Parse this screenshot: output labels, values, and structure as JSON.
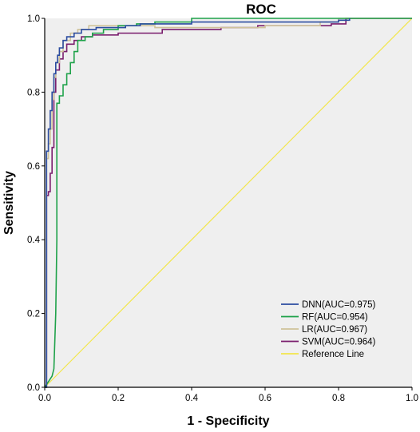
{
  "chart_data": {
    "type": "line",
    "title": "ROC",
    "xlabel": "1 - Specificity",
    "ylabel": "Sensitivity",
    "xlim": [
      0,
      1
    ],
    "ylim": [
      0,
      1
    ],
    "xticks": [
      "0.0",
      "0.2",
      "0.4",
      "0.6",
      "0.8",
      "1.0"
    ],
    "yticks": [
      "0.0",
      "0.2",
      "0.4",
      "0.6",
      "0.8",
      "1.0"
    ],
    "grid": false,
    "legend_position": "bottom-right",
    "colors": {
      "background": "#efefef",
      "axis": "#000000"
    },
    "series": [
      {
        "name": "DNN(AUC=0.975)",
        "color": "#2b4ca0",
        "x": [
          0.0,
          0.005,
          0.005,
          0.01,
          0.01,
          0.015,
          0.015,
          0.02,
          0.02,
          0.025,
          0.025,
          0.03,
          0.03,
          0.035,
          0.035,
          0.04,
          0.04,
          0.05,
          0.05,
          0.06,
          0.06,
          0.08,
          0.08,
          0.1,
          0.1,
          0.14,
          0.14,
          0.22,
          0.22,
          0.26,
          0.26,
          0.4,
          0.4,
          0.8,
          0.8,
          0.83,
          0.83
        ],
        "y": [
          0.0,
          0.0,
          0.64,
          0.64,
          0.7,
          0.7,
          0.75,
          0.75,
          0.8,
          0.8,
          0.85,
          0.85,
          0.88,
          0.88,
          0.9,
          0.9,
          0.92,
          0.92,
          0.94,
          0.94,
          0.95,
          0.95,
          0.96,
          0.96,
          0.97,
          0.97,
          0.975,
          0.975,
          0.98,
          0.98,
          0.985,
          0.985,
          0.99,
          0.99,
          0.995,
          0.995,
          1.0
        ]
      },
      {
        "name": "RF(AUC=0.954)",
        "color": "#1fa24a",
        "x": [
          0.0,
          0.02,
          0.025,
          0.03,
          0.033,
          0.033,
          0.04,
          0.04,
          0.05,
          0.05,
          0.06,
          0.06,
          0.07,
          0.07,
          0.08,
          0.08,
          0.09,
          0.09,
          0.11,
          0.11,
          0.13,
          0.13,
          0.16,
          0.16,
          0.2,
          0.2,
          0.25,
          0.25,
          0.3,
          0.3,
          0.4,
          0.4,
          1.0
        ],
        "y": [
          0.0,
          0.03,
          0.05,
          0.2,
          0.4,
          0.77,
          0.77,
          0.79,
          0.79,
          0.82,
          0.82,
          0.85,
          0.85,
          0.88,
          0.88,
          0.91,
          0.91,
          0.94,
          0.94,
          0.95,
          0.95,
          0.96,
          0.96,
          0.97,
          0.97,
          0.98,
          0.98,
          0.985,
          0.985,
          0.99,
          0.99,
          1.0,
          1.0
        ]
      },
      {
        "name": "LR(AUC=0.967)",
        "color": "#cfc39a",
        "x": [
          0.0,
          0.005,
          0.005,
          0.01,
          0.01,
          0.015,
          0.015,
          0.02,
          0.02,
          0.025,
          0.025,
          0.03,
          0.03,
          0.04,
          0.04,
          0.05,
          0.05,
          0.07,
          0.07,
          0.09,
          0.09,
          0.12,
          0.12,
          0.3,
          0.3,
          0.6,
          0.6,
          0.75,
          0.75,
          0.8,
          0.8,
          1.0
        ],
        "y": [
          0.0,
          0.0,
          0.62,
          0.62,
          0.66,
          0.66,
          0.7,
          0.7,
          0.78,
          0.78,
          0.84,
          0.84,
          0.88,
          0.88,
          0.91,
          0.91,
          0.94,
          0.94,
          0.96,
          0.96,
          0.97,
          0.97,
          0.98,
          0.98,
          0.975,
          0.975,
          0.98,
          0.98,
          0.99,
          0.99,
          1.0,
          1.0
        ]
      },
      {
        "name": "SVM(AUC=0.964)",
        "color": "#7a1e6e",
        "x": [
          0.0,
          0.005,
          0.005,
          0.01,
          0.01,
          0.015,
          0.015,
          0.02,
          0.02,
          0.025,
          0.025,
          0.03,
          0.03,
          0.04,
          0.04,
          0.05,
          0.05,
          0.06,
          0.06,
          0.08,
          0.08,
          0.1,
          0.1,
          0.13,
          0.13,
          0.2,
          0.2,
          0.32,
          0.32,
          0.48,
          0.48,
          0.58,
          0.58,
          0.78,
          0.78,
          0.82,
          0.82,
          1.0
        ],
        "y": [
          0.0,
          0.0,
          0.52,
          0.52,
          0.53,
          0.53,
          0.58,
          0.58,
          0.65,
          0.65,
          0.8,
          0.8,
          0.86,
          0.86,
          0.89,
          0.89,
          0.91,
          0.91,
          0.93,
          0.93,
          0.94,
          0.94,
          0.95,
          0.95,
          0.955,
          0.955,
          0.96,
          0.96,
          0.97,
          0.97,
          0.975,
          0.975,
          0.98,
          0.98,
          0.985,
          0.985,
          1.0,
          1.0
        ]
      },
      {
        "name": "Reference Line",
        "color": "#f2e64a",
        "x": [
          0,
          1
        ],
        "y": [
          0,
          1
        ]
      }
    ]
  }
}
